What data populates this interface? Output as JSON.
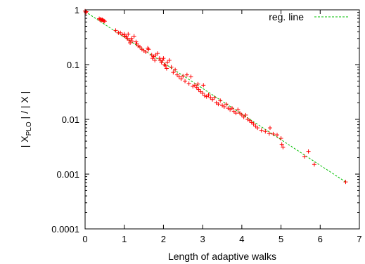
{
  "chart_data": {
    "type": "scatter",
    "xlabel": "Length of adaptive walks",
    "ylabel_parts": [
      "| X",
      "PLO",
      " | / | X |"
    ],
    "yscale": "log",
    "xlim": [
      0,
      7
    ],
    "ylim": [
      0.0001,
      1
    ],
    "xticks": [
      0,
      1,
      2,
      3,
      4,
      5,
      6,
      7
    ],
    "yticks": [
      {
        "value": 0.0001,
        "label": "0.0001"
      },
      {
        "value": 0.001,
        "label": "0.001"
      },
      {
        "value": 0.01,
        "label": "0.01"
      },
      {
        "value": 0.1,
        "label": "0.1"
      },
      {
        "value": 1,
        "label": "1"
      }
    ],
    "legend": {
      "placement": "top-right",
      "label": "reg. line"
    },
    "colors": {
      "points": "#ff0000",
      "line": "#00c000",
      "axes": "#000000"
    },
    "regression_line": {
      "x": [
        0,
        6.65
      ],
      "y": [
        0.93,
        0.00072
      ]
    },
    "points": [
      [
        0.0,
        0.95
      ],
      [
        0.02,
        0.9
      ],
      [
        0.03,
        0.93
      ],
      [
        0.36,
        0.69
      ],
      [
        0.38,
        0.66
      ],
      [
        0.4,
        0.68
      ],
      [
        0.42,
        0.65
      ],
      [
        0.44,
        0.66
      ],
      [
        0.46,
        0.64
      ],
      [
        0.48,
        0.63
      ],
      [
        0.5,
        0.62
      ],
      [
        0.78,
        0.42
      ],
      [
        0.85,
        0.38
      ],
      [
        0.9,
        0.38
      ],
      [
        0.95,
        0.35
      ],
      [
        1.0,
        0.36
      ],
      [
        1.02,
        0.33
      ],
      [
        1.05,
        0.32
      ],
      [
        1.08,
        0.3
      ],
      [
        1.1,
        0.36
      ],
      [
        1.12,
        0.28
      ],
      [
        1.15,
        0.25
      ],
      [
        1.18,
        0.3
      ],
      [
        1.2,
        0.27
      ],
      [
        1.25,
        0.33
      ],
      [
        1.3,
        0.26
      ],
      [
        1.32,
        0.24
      ],
      [
        1.35,
        0.22
      ],
      [
        1.4,
        0.21
      ],
      [
        1.45,
        0.19
      ],
      [
        1.5,
        0.18
      ],
      [
        1.55,
        0.17
      ],
      [
        1.6,
        0.2
      ],
      [
        1.62,
        0.19
      ],
      [
        1.7,
        0.15
      ],
      [
        1.72,
        0.13
      ],
      [
        1.75,
        0.14
      ],
      [
        1.78,
        0.12
      ],
      [
        1.8,
        0.15
      ],
      [
        1.85,
        0.16
      ],
      [
        1.9,
        0.13
      ],
      [
        1.92,
        0.12
      ],
      [
        1.95,
        0.11
      ],
      [
        1.98,
        0.12
      ],
      [
        2.0,
        0.13
      ],
      [
        2.02,
        0.1
      ],
      [
        2.05,
        0.095
      ],
      [
        2.08,
        0.085
      ],
      [
        2.1,
        0.11
      ],
      [
        2.15,
        0.12
      ],
      [
        2.2,
        0.09
      ],
      [
        2.25,
        0.072
      ],
      [
        2.3,
        0.08
      ],
      [
        2.35,
        0.065
      ],
      [
        2.4,
        0.06
      ],
      [
        2.45,
        0.055
      ],
      [
        2.5,
        0.062
      ],
      [
        2.55,
        0.05
      ],
      [
        2.6,
        0.065
      ],
      [
        2.65,
        0.045
      ],
      [
        2.7,
        0.06
      ],
      [
        2.75,
        0.04
      ],
      [
        2.8,
        0.042
      ],
      [
        2.85,
        0.038
      ],
      [
        2.88,
        0.044
      ],
      [
        2.9,
        0.035
      ],
      [
        2.95,
        0.032
      ],
      [
        3.0,
        0.03
      ],
      [
        3.02,
        0.042
      ],
      [
        3.05,
        0.027
      ],
      [
        3.1,
        0.026
      ],
      [
        3.15,
        0.028
      ],
      [
        3.2,
        0.025
      ],
      [
        3.25,
        0.023
      ],
      [
        3.3,
        0.025
      ],
      [
        3.35,
        0.02
      ],
      [
        3.4,
        0.019
      ],
      [
        3.45,
        0.022
      ],
      [
        3.5,
        0.018
      ],
      [
        3.55,
        0.017
      ],
      [
        3.6,
        0.019
      ],
      [
        3.65,
        0.016
      ],
      [
        3.7,
        0.015
      ],
      [
        3.75,
        0.016
      ],
      [
        3.8,
        0.014
      ],
      [
        3.85,
        0.013
      ],
      [
        3.9,
        0.015
      ],
      [
        3.95,
        0.013
      ],
      [
        4.0,
        0.012
      ],
      [
        4.05,
        0.011
      ],
      [
        4.1,
        0.012
      ],
      [
        4.15,
        0.01
      ],
      [
        4.2,
        0.0095
      ],
      [
        4.25,
        0.0088
      ],
      [
        4.3,
        0.0082
      ],
      [
        4.35,
        0.0075
      ],
      [
        4.4,
        0.007
      ],
      [
        4.5,
        0.0063
      ],
      [
        4.6,
        0.006
      ],
      [
        4.7,
        0.0055
      ],
      [
        4.72,
        0.007
      ],
      [
        4.8,
        0.0054
      ],
      [
        4.9,
        0.0052
      ],
      [
        5.0,
        0.0045
      ],
      [
        5.02,
        0.0035
      ],
      [
        5.05,
        0.0031
      ],
      [
        5.6,
        0.0021
      ],
      [
        5.7,
        0.0026
      ],
      [
        5.85,
        0.0015
      ],
      [
        6.65,
        0.00072
      ]
    ]
  }
}
